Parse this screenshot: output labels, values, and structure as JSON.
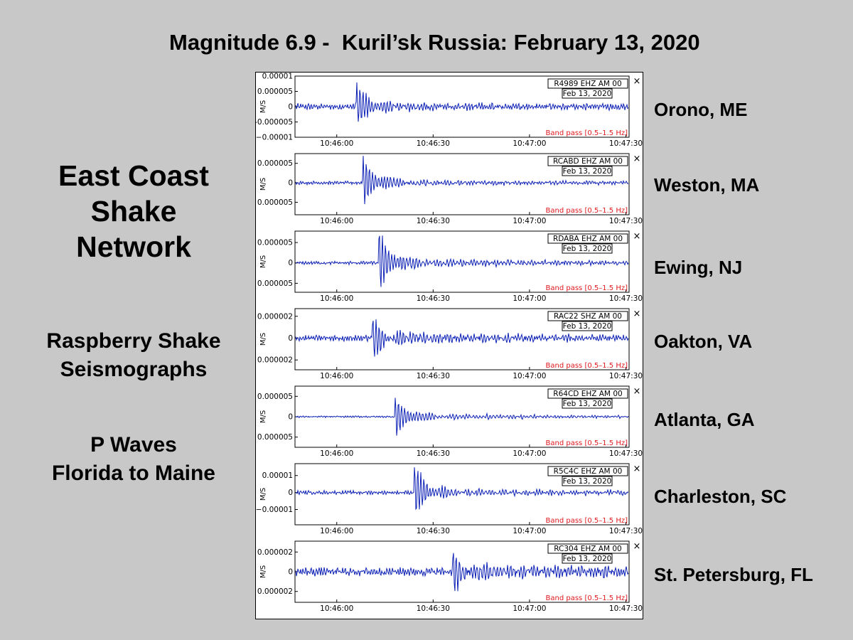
{
  "slide": {
    "title": "Magnitude 6.9 -  Kuril’sk Russia: February 13, 2020",
    "heading": [
      "East Coast",
      "Shake",
      "Network"
    ],
    "sub1": [
      "Raspberry Shake",
      "Seismographs"
    ],
    "sub2": [
      "P Waves",
      "Florida to Maine"
    ]
  },
  "close_glyph": "×",
  "chart_data": [
    {
      "type": "line",
      "station": "Orono, ME",
      "id": "R4989 EHZ AM 00",
      "date": "Feb 13, 2020",
      "filter": "Band pass [0.5–1.5 Hz]",
      "ylabel": "M/S",
      "yticks": [
        "0.00001",
        "0.000005",
        "0",
        "-0.000005",
        "−0.00001"
      ],
      "ylim": [
        -1e-05,
        1e-05
      ],
      "xticks": [
        "10:46:00",
        "10:46:30",
        "10:47:00",
        "10:47:30"
      ],
      "xlim": [
        "10:45:47",
        "10:47:31"
      ],
      "arrival": "10:46:06",
      "peak": 7.7e-06,
      "trough": -6.5e-06,
      "noise": 7e-07,
      "coda": 1.2e-06
    },
    {
      "type": "line",
      "station": "Weston, MA",
      "id": "RCABD EHZ AM 00",
      "date": "Feb 13, 2020",
      "filter": "Band pass [0.5–1.5 Hz]",
      "ylabel": "M/S",
      "yticks": [
        "0.000005",
        "0",
        "0.000005"
      ],
      "ylim": [
        -8.2e-06,
        7.5e-06
      ],
      "xticks": [
        "10:46:00",
        "10:46:30",
        "10:47:00",
        "10:47:30"
      ],
      "xlim": [
        "10:45:47",
        "10:47:31"
      ],
      "arrival": "10:46:08",
      "peak": 6.5e-06,
      "trough": -5.5e-06,
      "noise": 3e-07,
      "coda": 9e-07
    },
    {
      "type": "line",
      "station": "Ewing, NJ",
      "id": "RDABA EHZ AM 00",
      "date": "Feb 13, 2020",
      "filter": "Band pass [0.5–1.5 Hz]",
      "ylabel": "M/S",
      "yticks": [
        "0.000005",
        "0",
        "0.000005"
      ],
      "ylim": [
        -7.2e-06,
        7.8e-06
      ],
      "xticks": [
        "10:46:00",
        "10:46:30",
        "10:47:00",
        "10:47:30"
      ],
      "xlim": [
        "10:45:47",
        "10:47:31"
      ],
      "arrival": "10:46:13",
      "peak": 7.5e-06,
      "trough": -6.5e-06,
      "noise": 3e-07,
      "coda": 1.2e-06
    },
    {
      "type": "line",
      "station": "Oakton, VA",
      "id": "RAC22 SHZ AM 00",
      "date": "Feb 13, 2020",
      "filter": "Band pass [0.5–1.5 Hz]",
      "ylabel": "M/S",
      "yticks": [
        "0.000002",
        "0",
        "0.000002"
      ],
      "ylim": [
        -2.9e-06,
        2.7e-06
      ],
      "xticks": [
        "10:46:00",
        "10:46:30",
        "10:47:00",
        "10:47:30"
      ],
      "xlim": [
        "10:45:47",
        "10:47:31"
      ],
      "arrival": "10:46:11",
      "peak": 1.8e-06,
      "trough": -2e-06,
      "noise": 2e-07,
      "coda": 6e-07
    },
    {
      "type": "line",
      "station": "Atlanta, GA",
      "id": "R64CD EHZ AM 00",
      "date": "Feb 13, 2020",
      "filter": "Band pass [0.5–1.5 Hz]",
      "ylabel": "M/S",
      "yticks": [
        "0.000005",
        "0",
        "0.000005"
      ],
      "ylim": [
        -7.5e-06,
        7.5e-06
      ],
      "xticks": [
        "10:46:00",
        "10:46:30",
        "10:47:00",
        "10:47:30"
      ],
      "xlim": [
        "10:45:47",
        "10:47:31"
      ],
      "arrival": "10:46:18",
      "peak": 4.5e-06,
      "trough": -5.2e-06,
      "noise": 1.5e-07,
      "coda": 9e-07
    },
    {
      "type": "line",
      "station": "Charleston, SC",
      "id": "R5C4C EHZ AM 00",
      "date": "Feb 13, 2020",
      "filter": "Band pass [0.5–1.5 Hz]",
      "ylabel": "M/S",
      "yticks": [
        "0.00001",
        "0",
        "−0.00001"
      ],
      "ylim": [
        -1.9e-05,
        1.7e-05
      ],
      "xticks": [
        "10:46:00",
        "10:46:30",
        "10:47:00",
        "10:47:30"
      ],
      "xlim": [
        "10:45:47",
        "10:47:31"
      ],
      "arrival": "10:46:24",
      "peak": 1.6e-05,
      "trough": -1.3e-05,
      "noise": 8e-07,
      "coda": 2.5e-06
    },
    {
      "type": "line",
      "station": "St. Petersburg, FL",
      "id": "RC304 EHZ AM 00",
      "date": "Feb 13, 2020",
      "filter": "Band pass [0.5–1.5 Hz]",
      "ylabel": "M/S",
      "yticks": [
        "0.000002",
        "0",
        "0.000002"
      ],
      "ylim": [
        -3.1e-06,
        3.1e-06
      ],
      "xticks": [
        "10:46:00",
        "10:46:30",
        "10:47:00",
        "10:47:30"
      ],
      "xlim": [
        "10:45:47",
        "10:47:31"
      ],
      "arrival": "10:46:36",
      "peak": 1.5e-06,
      "trough": -2.2e-06,
      "noise": 3e-07,
      "coda": 8e-07
    }
  ]
}
